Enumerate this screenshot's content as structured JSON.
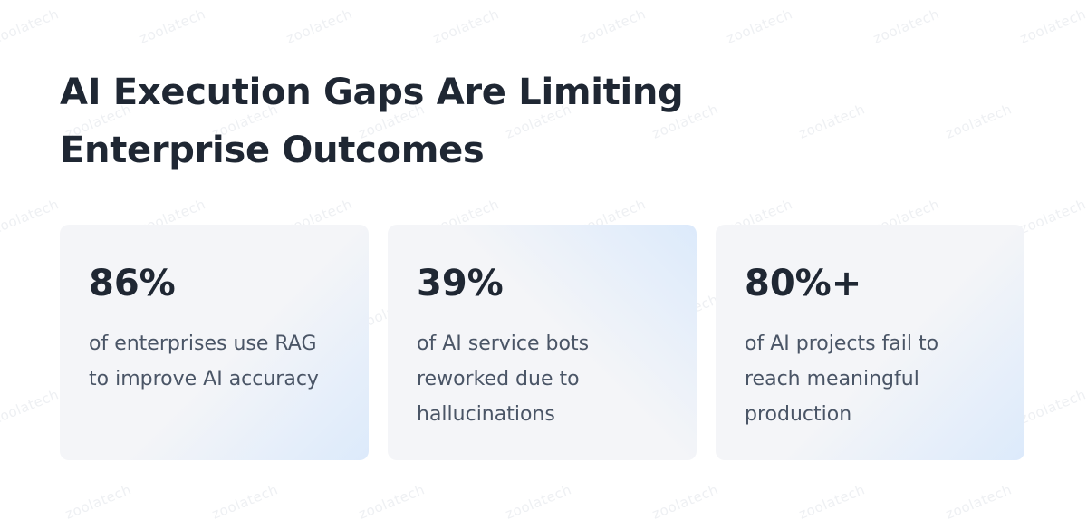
{
  "watermark": "zoolatech",
  "header": {
    "title": "AI Execution Gaps Are Limiting Enterprise Outcomes"
  },
  "cards": [
    {
      "stat": "86%",
      "description": "of enterprises use RAG to improve AI accuracy"
    },
    {
      "stat": "39%",
      "description": "of AI service bots reworked due to hallucinations"
    },
    {
      "stat": "80%+",
      "description": "of AI projects fail to reach meaningful production"
    }
  ]
}
